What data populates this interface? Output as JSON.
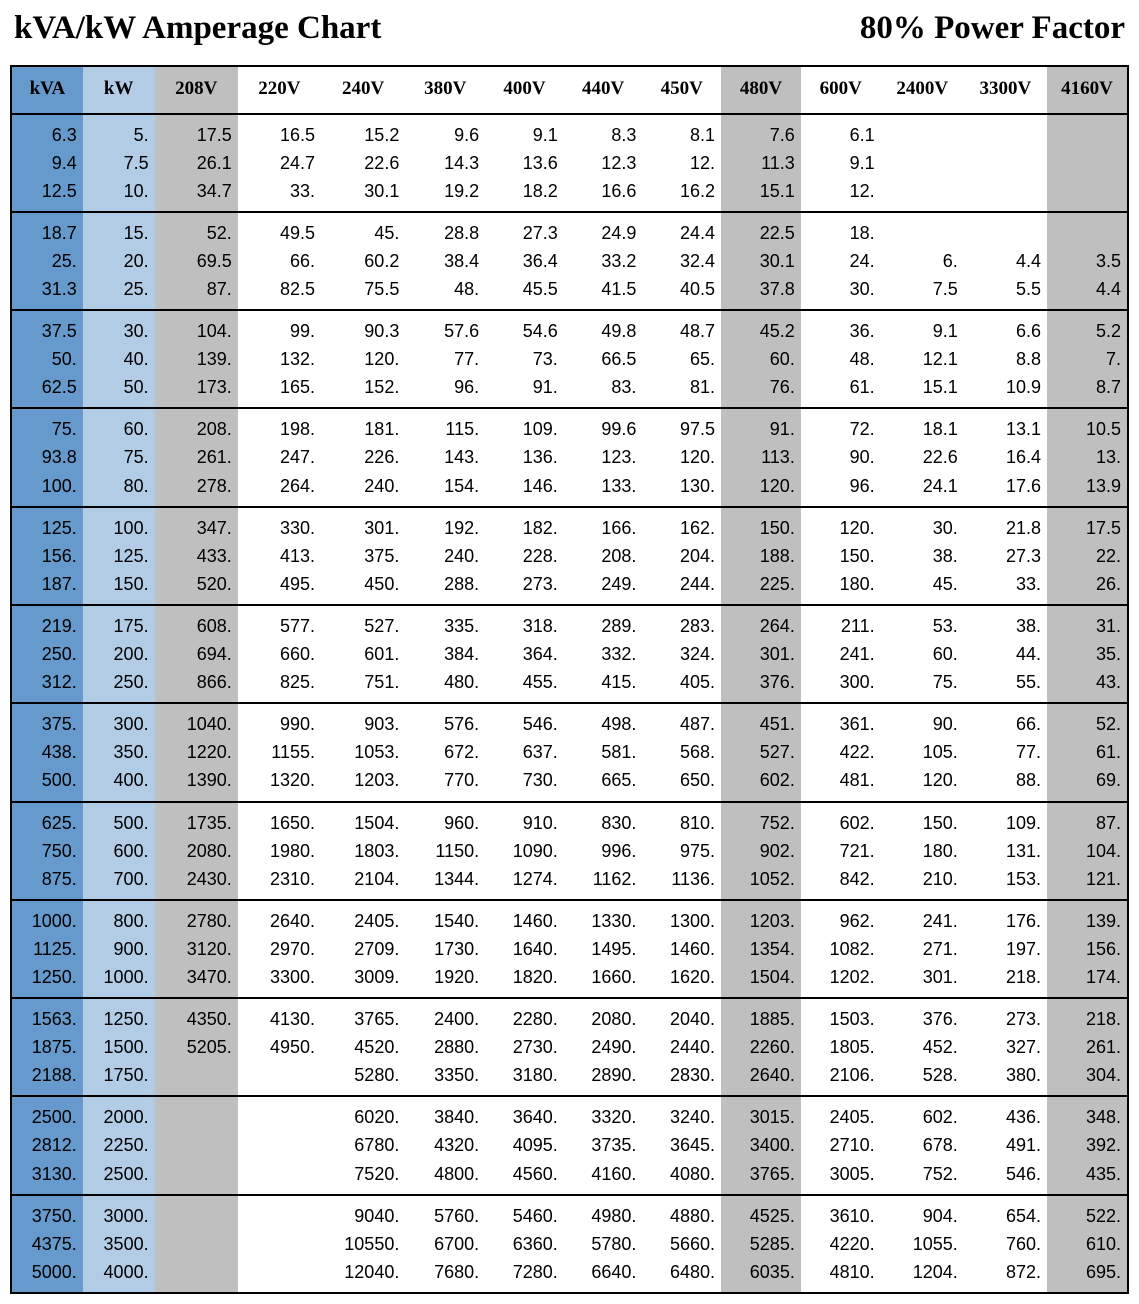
{
  "title_left": "kVA/kW Amperage Chart",
  "title_right": "80% Power Factor",
  "table": {
    "type": "table",
    "background_color": "#ffffff",
    "border_color": "#000000",
    "title_fontfamily": "Georgia, serif",
    "title_fontsize": 33,
    "title_fontweight": "bold",
    "header_fontfamily": "Georgia, serif",
    "header_fontsize": 19,
    "header_fontweight": "bold",
    "cell_fontfamily": "Arial, sans-serif",
    "cell_fontsize": 18,
    "cell_align": "right",
    "columns": [
      "kVA",
      "kW",
      "208V",
      "220V",
      "240V",
      "380V",
      "400V",
      "440V",
      "450V",
      "480V",
      "600V",
      "2400V",
      "3300V",
      "4160V"
    ],
    "column_colors": [
      "#6699cc",
      "#b3cce6",
      "#bfbfbf",
      "#ffffff",
      "#ffffff",
      "#ffffff",
      "#ffffff",
      "#ffffff",
      "#ffffff",
      "#bfbfbf",
      "#ffffff",
      "#ffffff",
      "#ffffff",
      "#bfbfbf"
    ],
    "column_widths_pct": [
      6.3,
      6.3,
      7.3,
      7.3,
      7.4,
      7,
      6.9,
      6.9,
      6.9,
      7,
      7,
      7.3,
      7.3,
      7.1
    ],
    "groups": [
      [
        [
          "6.3",
          "5.",
          "17.5",
          "16.5",
          "15.2",
          "9.6",
          "9.1",
          "8.3",
          "8.1",
          "7.6",
          "6.1",
          "",
          "",
          ""
        ],
        [
          "9.4",
          "7.5",
          "26.1",
          "24.7",
          "22.6",
          "14.3",
          "13.6",
          "12.3",
          "12.",
          "11.3",
          "9.1",
          "",
          "",
          ""
        ],
        [
          "12.5",
          "10.",
          "34.7",
          "33.",
          "30.1",
          "19.2",
          "18.2",
          "16.6",
          "16.2",
          "15.1",
          "12.",
          "",
          "",
          ""
        ]
      ],
      [
        [
          "18.7",
          "15.",
          "52.",
          "49.5",
          "45.",
          "28.8",
          "27.3",
          "24.9",
          "24.4",
          "22.5",
          "18.",
          "",
          "",
          ""
        ],
        [
          "25.",
          "20.",
          "69.5",
          "66.",
          "60.2",
          "38.4",
          "36.4",
          "33.2",
          "32.4",
          "30.1",
          "24.",
          "6.",
          "4.4",
          "3.5"
        ],
        [
          "31.3",
          "25.",
          "87.",
          "82.5",
          "75.5",
          "48.",
          "45.5",
          "41.5",
          "40.5",
          "37.8",
          "30.",
          "7.5",
          "5.5",
          "4.4"
        ]
      ],
      [
        [
          "37.5",
          "30.",
          "104.",
          "99.",
          "90.3",
          "57.6",
          "54.6",
          "49.8",
          "48.7",
          "45.2",
          "36.",
          "9.1",
          "6.6",
          "5.2"
        ],
        [
          "50.",
          "40.",
          "139.",
          "132.",
          "120.",
          "77.",
          "73.",
          "66.5",
          "65.",
          "60.",
          "48.",
          "12.1",
          "8.8",
          "7."
        ],
        [
          "62.5",
          "50.",
          "173.",
          "165.",
          "152.",
          "96.",
          "91.",
          "83.",
          "81.",
          "76.",
          "61.",
          "15.1",
          "10.9",
          "8.7"
        ]
      ],
      [
        [
          "75.",
          "60.",
          "208.",
          "198.",
          "181.",
          "115.",
          "109.",
          "99.6",
          "97.5",
          "91.",
          "72.",
          "18.1",
          "13.1",
          "10.5"
        ],
        [
          "93.8",
          "75.",
          "261.",
          "247.",
          "226.",
          "143.",
          "136.",
          "123.",
          "120.",
          "113.",
          "90.",
          "22.6",
          "16.4",
          "13."
        ],
        [
          "100.",
          "80.",
          "278.",
          "264.",
          "240.",
          "154.",
          "146.",
          "133.",
          "130.",
          "120.",
          "96.",
          "24.1",
          "17.6",
          "13.9"
        ]
      ],
      [
        [
          "125.",
          "100.",
          "347.",
          "330.",
          "301.",
          "192.",
          "182.",
          "166.",
          "162.",
          "150.",
          "120.",
          "30.",
          "21.8",
          "17.5"
        ],
        [
          "156.",
          "125.",
          "433.",
          "413.",
          "375.",
          "240.",
          "228.",
          "208.",
          "204.",
          "188.",
          "150.",
          "38.",
          "27.3",
          "22."
        ],
        [
          "187.",
          "150.",
          "520.",
          "495.",
          "450.",
          "288.",
          "273.",
          "249.",
          "244.",
          "225.",
          "180.",
          "45.",
          "33.",
          "26."
        ]
      ],
      [
        [
          "219.",
          "175.",
          "608.",
          "577.",
          "527.",
          "335.",
          "318.",
          "289.",
          "283.",
          "264.",
          "211.",
          "53.",
          "38.",
          "31."
        ],
        [
          "250.",
          "200.",
          "694.",
          "660.",
          "601.",
          "384.",
          "364.",
          "332.",
          "324.",
          "301.",
          "241.",
          "60.",
          "44.",
          "35."
        ],
        [
          "312.",
          "250.",
          "866.",
          "825.",
          "751.",
          "480.",
          "455.",
          "415.",
          "405.",
          "376.",
          "300.",
          "75.",
          "55.",
          "43."
        ]
      ],
      [
        [
          "375.",
          "300.",
          "1040.",
          "990.",
          "903.",
          "576.",
          "546.",
          "498.",
          "487.",
          "451.",
          "361.",
          "90.",
          "66.",
          "52."
        ],
        [
          "438.",
          "350.",
          "1220.",
          "1155.",
          "1053.",
          "672.",
          "637.",
          "581.",
          "568.",
          "527.",
          "422.",
          "105.",
          "77.",
          "61."
        ],
        [
          "500.",
          "400.",
          "1390.",
          "1320.",
          "1203.",
          "770.",
          "730.",
          "665.",
          "650.",
          "602.",
          "481.",
          "120.",
          "88.",
          "69."
        ]
      ],
      [
        [
          "625.",
          "500.",
          "1735.",
          "1650.",
          "1504.",
          "960.",
          "910.",
          "830.",
          "810.",
          "752.",
          "602.",
          "150.",
          "109.",
          "87."
        ],
        [
          "750.",
          "600.",
          "2080.",
          "1980.",
          "1803.",
          "1150.",
          "1090.",
          "996.",
          "975.",
          "902.",
          "721.",
          "180.",
          "131.",
          "104."
        ],
        [
          "875.",
          "700.",
          "2430.",
          "2310.",
          "2104.",
          "1344.",
          "1274.",
          "1162.",
          "1136.",
          "1052.",
          "842.",
          "210.",
          "153.",
          "121."
        ]
      ],
      [
        [
          "1000.",
          "800.",
          "2780.",
          "2640.",
          "2405.",
          "1540.",
          "1460.",
          "1330.",
          "1300.",
          "1203.",
          "962.",
          "241.",
          "176.",
          "139."
        ],
        [
          "1125.",
          "900.",
          "3120.",
          "2970.",
          "2709.",
          "1730.",
          "1640.",
          "1495.",
          "1460.",
          "1354.",
          "1082.",
          "271.",
          "197.",
          "156."
        ],
        [
          "1250.",
          "1000.",
          "3470.",
          "3300.",
          "3009.",
          "1920.",
          "1820.",
          "1660.",
          "1620.",
          "1504.",
          "1202.",
          "301.",
          "218.",
          "174."
        ]
      ],
      [
        [
          "1563.",
          "1250.",
          "4350.",
          "4130.",
          "3765.",
          "2400.",
          "2280.",
          "2080.",
          "2040.",
          "1885.",
          "1503.",
          "376.",
          "273.",
          "218."
        ],
        [
          "1875.",
          "1500.",
          "5205.",
          "4950.",
          "4520.",
          "2880.",
          "2730.",
          "2490.",
          "2440.",
          "2260.",
          "1805.",
          "452.",
          "327.",
          "261."
        ],
        [
          "2188.",
          "1750.",
          "",
          "",
          "5280.",
          "3350.",
          "3180.",
          "2890.",
          "2830.",
          "2640.",
          "2106.",
          "528.",
          "380.",
          "304."
        ]
      ],
      [
        [
          "2500.",
          "2000.",
          "",
          "",
          "6020.",
          "3840.",
          "3640.",
          "3320.",
          "3240.",
          "3015.",
          "2405.",
          "602.",
          "436.",
          "348."
        ],
        [
          "2812.",
          "2250.",
          "",
          "",
          "6780.",
          "4320.",
          "4095.",
          "3735.",
          "3645.",
          "3400.",
          "2710.",
          "678.",
          "491.",
          "392."
        ],
        [
          "3130.",
          "2500.",
          "",
          "",
          "7520.",
          "4800.",
          "4560.",
          "4160.",
          "4080.",
          "3765.",
          "3005.",
          "752.",
          "546.",
          "435."
        ]
      ],
      [
        [
          "3750.",
          "3000.",
          "",
          "",
          "9040.",
          "5760.",
          "5460.",
          "4980.",
          "4880.",
          "4525.",
          "3610.",
          "904.",
          "654.",
          "522."
        ],
        [
          "4375.",
          "3500.",
          "",
          "",
          "10550.",
          "6700.",
          "6360.",
          "5780.",
          "5660.",
          "5285.",
          "4220.",
          "1055.",
          "760.",
          "610."
        ],
        [
          "5000.",
          "4000.",
          "",
          "",
          "12040.",
          "7680.",
          "7280.",
          "6640.",
          "6480.",
          "6035.",
          "4810.",
          "1204.",
          "872.",
          "695."
        ]
      ]
    ]
  }
}
